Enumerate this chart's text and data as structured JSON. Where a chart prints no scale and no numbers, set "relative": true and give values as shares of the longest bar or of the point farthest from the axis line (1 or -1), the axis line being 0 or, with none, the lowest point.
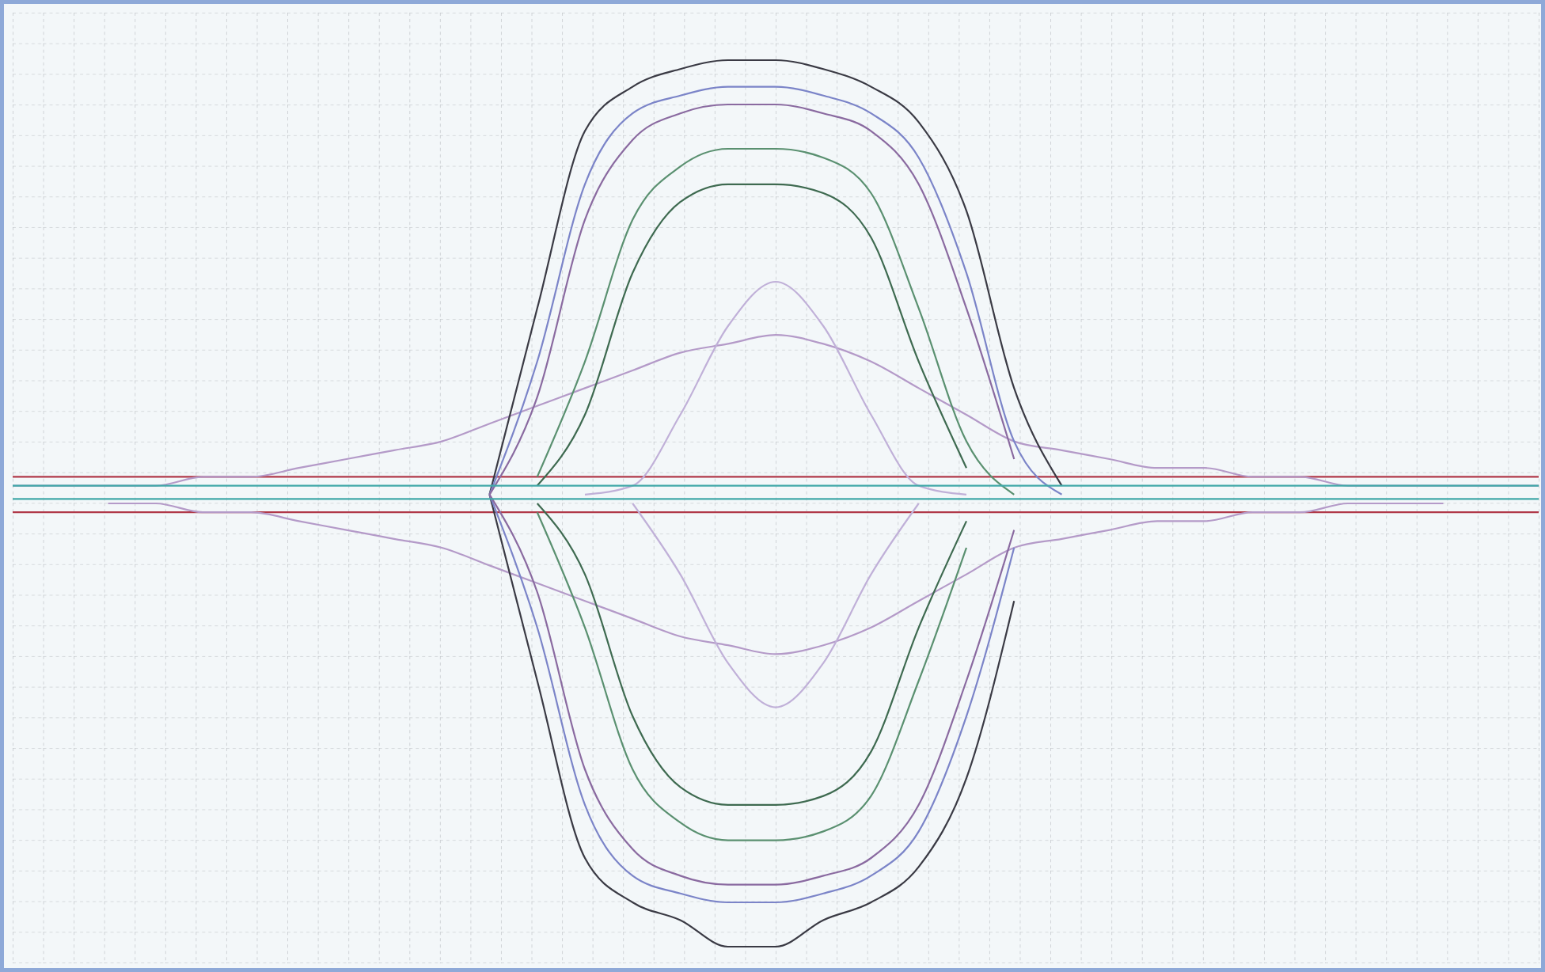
{
  "chart_data": {
    "type": "line",
    "relative": true,
    "categories": [
      null,
      null,
      null,
      null,
      null,
      null,
      null,
      null,
      null,
      null,
      null,
      null,
      null,
      null,
      null,
      null,
      null,
      null,
      null,
      null,
      null,
      null,
      null,
      null,
      null,
      null,
      null,
      null,
      null,
      null,
      null,
      null,
      null
    ],
    "series": [
      {
        "color": "#b03848",
        "values": [
          0.53,
          0.53,
          0.53,
          0.53,
          0.53,
          0.53,
          0.53,
          0.53,
          0.53,
          0.53,
          0.53,
          0.53,
          0.53,
          0.53,
          0.53,
          0.53,
          0.53,
          0.53,
          0.53,
          0.53,
          0.53,
          0.53,
          0.53,
          0.53,
          0.53,
          0.53,
          0.53,
          0.53,
          0.53,
          0.53,
          0.53,
          0.53,
          0.53
        ]
      },
      {
        "color": "#b03848",
        "values": [
          0.49,
          0.49,
          0.49,
          0.49,
          0.49,
          0.49,
          0.49,
          0.49,
          0.49,
          0.49,
          0.49,
          0.49,
          0.49,
          0.49,
          0.49,
          0.49,
          0.49,
          0.49,
          0.49,
          0.49,
          0.49,
          0.49,
          0.49,
          0.49,
          0.49,
          0.49,
          0.49,
          0.49,
          0.49,
          0.49,
          0.49,
          0.49,
          0.49
        ]
      },
      {
        "color": "#b49ac8",
        "values": [
          0.52,
          0.52,
          0.52,
          0.52,
          0.53,
          0.53,
          0.54,
          0.55,
          0.56,
          0.57,
          0.59,
          0.61,
          0.63,
          0.65,
          0.67,
          0.68,
          0.69,
          0.68,
          0.66,
          0.63,
          0.6,
          0.57,
          0.56,
          0.55,
          0.54,
          0.54,
          0.53,
          0.53,
          0.52,
          0.52,
          0.52,
          0.52,
          0.52
        ]
      },
      {
        "color": "#b49ac8",
        "values": [
          null,
          null,
          0.5,
          0.5,
          0.49,
          0.49,
          0.48,
          0.47,
          0.46,
          0.45,
          0.43,
          0.41,
          0.39,
          0.37,
          0.35,
          0.34,
          0.33,
          0.34,
          0.36,
          0.39,
          0.42,
          0.45,
          0.46,
          0.47,
          0.48,
          0.48,
          0.49,
          0.49,
          0.5,
          0.5,
          0.5,
          null,
          null
        ]
      },
      {
        "color": "#c0b0d8",
        "values": [
          null,
          null,
          null,
          null,
          null,
          null,
          null,
          null,
          null,
          null,
          null,
          null,
          0.51,
          0.52,
          0.6,
          0.7,
          0.75,
          0.7,
          0.6,
          0.52,
          0.51,
          null,
          null,
          null,
          null,
          null,
          null,
          null,
          null,
          null,
          null,
          null,
          null
        ]
      },
      {
        "color": "#c0b0d8",
        "values": [
          null,
          null,
          null,
          null,
          null,
          null,
          null,
          null,
          null,
          null,
          null,
          null,
          null,
          0.5,
          0.42,
          0.32,
          0.27,
          0.32,
          0.42,
          0.5,
          null,
          null,
          null,
          null,
          null,
          null,
          null,
          null,
          null,
          null,
          null,
          null,
          null
        ]
      },
      {
        "color": "#3a3a44",
        "values": [
          null,
          null,
          null,
          null,
          null,
          null,
          null,
          null,
          null,
          null,
          0.51,
          0.72,
          0.92,
          0.97,
          0.99,
          1.0,
          1.0,
          0.99,
          0.97,
          0.93,
          0.83,
          0.63,
          0.52,
          null,
          null,
          null,
          null,
          null,
          null,
          null,
          null,
          null,
          null
        ]
      },
      {
        "color": "#3a3a44",
        "values": [
          null,
          null,
          null,
          null,
          null,
          null,
          null,
          null,
          null,
          null,
          0.51,
          0.3,
          0.1,
          0.05,
          0.03,
          0,
          0,
          0.03,
          0.05,
          0.09,
          0.19,
          0.39,
          null,
          null,
          null,
          null,
          null,
          null,
          null,
          null,
          null,
          null,
          null
        ]
      },
      {
        "color": "#7b84c8",
        "values": [
          null,
          null,
          null,
          null,
          null,
          null,
          null,
          null,
          null,
          null,
          0.51,
          0.66,
          0.86,
          0.94,
          0.96,
          0.97,
          0.97,
          0.96,
          0.94,
          0.89,
          0.76,
          0.57,
          0.51,
          null,
          null,
          null,
          null,
          null,
          null,
          null,
          null,
          null,
          null
        ]
      },
      {
        "color": "#7b84c8",
        "values": [
          null,
          null,
          null,
          null,
          null,
          null,
          null,
          null,
          null,
          null,
          0.51,
          0.36,
          0.16,
          0.08,
          0.06,
          0.05,
          0.05,
          0.06,
          0.08,
          0.13,
          0.26,
          0.45,
          null,
          null,
          null,
          null,
          null,
          null,
          null,
          null,
          null,
          null,
          null
        ]
      },
      {
        "color": "#8a6aa0",
        "values": [
          null,
          null,
          null,
          null,
          null,
          null,
          null,
          null,
          null,
          null,
          0.51,
          0.62,
          0.82,
          0.91,
          0.94,
          0.95,
          0.95,
          0.94,
          0.92,
          0.86,
          0.72,
          0.55,
          null,
          null,
          null,
          null,
          null,
          null,
          null,
          null,
          null,
          null,
          null
        ]
      },
      {
        "color": "#8a6aa0",
        "values": [
          null,
          null,
          null,
          null,
          null,
          null,
          null,
          null,
          null,
          null,
          0.51,
          0.4,
          0.2,
          0.11,
          0.08,
          0.07,
          0.07,
          0.08,
          0.1,
          0.16,
          0.3,
          0.47,
          null,
          null,
          null,
          null,
          null,
          null,
          null,
          null,
          null,
          null,
          null
        ]
      },
      {
        "color": "#5a9070",
        "values": [
          null,
          null,
          null,
          null,
          null,
          null,
          null,
          null,
          null,
          null,
          null,
          0.53,
          0.66,
          0.82,
          0.88,
          0.9,
          0.9,
          0.89,
          0.85,
          0.72,
          0.57,
          0.51,
          null,
          null,
          null,
          null,
          null,
          null,
          null,
          null,
          null,
          null,
          null
        ]
      },
      {
        "color": "#5a9070",
        "values": [
          null,
          null,
          null,
          null,
          null,
          null,
          null,
          null,
          null,
          null,
          null,
          0.49,
          0.36,
          0.2,
          0.14,
          0.12,
          0.12,
          0.13,
          0.17,
          0.3,
          0.45,
          null,
          null,
          null,
          null,
          null,
          null,
          null,
          null,
          null,
          null,
          null,
          null
        ]
      },
      {
        "color": "#3e6a50",
        "values": [
          null,
          null,
          null,
          null,
          null,
          null,
          null,
          null,
          null,
          null,
          null,
          0.52,
          0.6,
          0.76,
          0.84,
          0.86,
          0.86,
          0.85,
          0.8,
          0.66,
          0.54,
          null,
          null,
          null,
          null,
          null,
          null,
          null,
          null,
          null,
          null,
          null,
          null
        ]
      },
      {
        "color": "#3e6a50",
        "values": [
          null,
          null,
          null,
          null,
          null,
          null,
          null,
          null,
          null,
          null,
          null,
          0.5,
          0.42,
          0.26,
          0.18,
          0.16,
          0.16,
          0.17,
          0.22,
          0.36,
          0.48,
          null,
          null,
          null,
          null,
          null,
          null,
          null,
          null,
          null,
          null,
          null,
          null
        ]
      },
      {
        "color": "#40a8a8",
        "values": [
          0.52,
          0.52,
          0.52,
          0.52,
          0.52,
          0.52,
          0.52,
          0.52,
          0.52,
          0.52,
          0.52,
          0.52,
          0.52,
          0.52,
          0.52,
          0.52,
          0.52,
          0.52,
          0.52,
          0.52,
          0.52,
          0.52,
          0.52,
          0.52,
          0.52,
          0.52,
          0.52,
          0.52,
          0.52,
          0.52,
          0.52,
          0.52,
          0.52
        ]
      },
      {
        "color": "#40a8a8",
        "values": [
          0.505,
          0.505,
          0.505,
          0.505,
          0.505,
          0.505,
          0.505,
          0.505,
          0.505,
          0.505,
          0.505,
          0.505,
          0.505,
          0.505,
          0.505,
          0.505,
          0.505,
          0.505,
          0.505,
          0.505,
          0.505,
          0.505,
          0.505,
          0.505,
          0.505,
          0.505,
          0.505,
          0.505,
          0.505,
          0.505,
          0.505,
          0.505,
          0.505
        ]
      }
    ]
  }
}
